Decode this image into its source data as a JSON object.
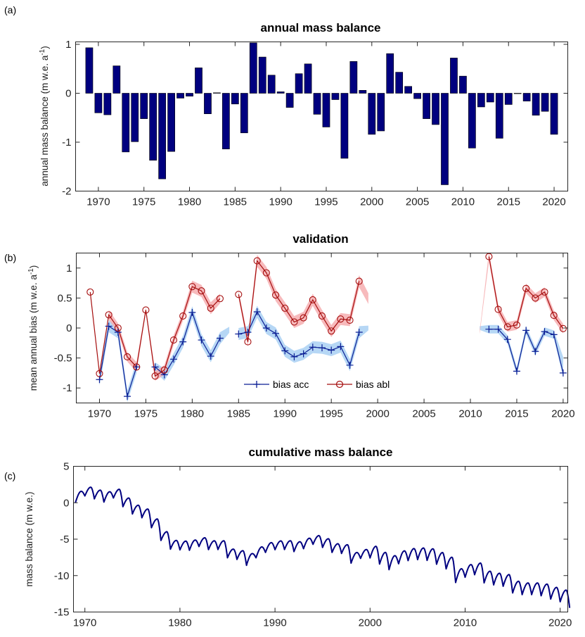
{
  "figure": {
    "colors": {
      "bar": "#00007f",
      "acc": "#0b1e94",
      "abl": "#a50d0d",
      "acc_band": "#aed3f4",
      "abl_band": "#f6aeb0",
      "line": "#000080"
    }
  },
  "chart_data": [
    {
      "panel": "(a)",
      "type": "bar",
      "title": "annual mass balance",
      "ylabel": "annual mass balance  (m w.e. a",
      "ylabel_sup": "-1",
      "ylabel_end": ")",
      "xlim": [
        1967.5,
        2021.5
      ],
      "ylim": [
        -2,
        1.05
      ],
      "xticks": [
        1970,
        1975,
        1980,
        1985,
        1990,
        1995,
        2000,
        2005,
        2010,
        2015,
        2020
      ],
      "yticks": [
        -2,
        -1,
        0,
        1
      ],
      "years": [
        1969,
        1970,
        1971,
        1972,
        1973,
        1974,
        1975,
        1976,
        1977,
        1978,
        1979,
        1980,
        1981,
        1982,
        1983,
        1984,
        1985,
        1986,
        1987,
        1988,
        1989,
        1990,
        1991,
        1992,
        1993,
        1994,
        1995,
        1996,
        1997,
        1998,
        1999,
        2000,
        2001,
        2002,
        2003,
        2004,
        2005,
        2006,
        2007,
        2008,
        2009,
        2010,
        2011,
        2012,
        2013,
        2014,
        2015,
        2016,
        2017,
        2018,
        2019,
        2020
      ],
      "values": [
        0.93,
        -0.4,
        -0.44,
        0.56,
        -1.2,
        -0.99,
        -0.52,
        -1.37,
        -1.75,
        -1.19,
        -0.1,
        -0.06,
        0.52,
        -0.42,
        0.01,
        -1.14,
        -0.22,
        -0.81,
        1.03,
        0.74,
        0.37,
        0.03,
        -0.29,
        0.4,
        0.6,
        -0.43,
        -0.69,
        -0.13,
        -1.33,
        0.65,
        0.06,
        -0.84,
        -0.77,
        0.81,
        0.43,
        0.14,
        -0.11,
        -0.52,
        -0.64,
        -1.87,
        0.72,
        0.35,
        -1.12,
        -0.28,
        -0.18,
        -0.92,
        -0.23,
        0.0,
        -0.16,
        -0.45,
        -0.37,
        -0.84
      ]
    },
    {
      "panel": "(b)",
      "type": "line",
      "title": "validation",
      "ylabel": "mean annual bias (m w.e. a",
      "ylabel_sup": "-1",
      "ylabel_end": ")",
      "xlim": [
        1967.5,
        2020.5
      ],
      "ylim": [
        -1.25,
        1.25
      ],
      "xticks": [
        1970,
        1975,
        1980,
        1985,
        1990,
        1995,
        2000,
        2005,
        2010,
        2015,
        2020
      ],
      "yticks": [
        -1,
        -0.5,
        0,
        0.5,
        1
      ],
      "legend_position": "bottom-center",
      "series": [
        {
          "name": "bias acc",
          "marker": "+",
          "segments": [
            {
              "x": [
                1970,
                1971,
                1972,
                1973,
                1974
              ],
              "y": [
                -0.86,
                0.03,
                -0.07,
                -1.14,
                -0.65
              ]
            },
            {
              "x": [
                1976,
                1977,
                1978,
                1979,
                1980,
                1981,
                1982,
                1983
              ],
              "y": [
                -0.65,
                -0.78,
                -0.52,
                -0.23,
                0.26,
                -0.2,
                -0.47,
                -0.17
              ]
            },
            {
              "x": [
                1985,
                1986,
                1987,
                1988,
                1989,
                1990,
                1991,
                1992,
                1993,
                1994,
                1995,
                1996,
                1997,
                1998
              ],
              "y": [
                -0.1,
                -0.07,
                0.27,
                0.0,
                -0.09,
                -0.38,
                -0.48,
                -0.43,
                -0.32,
                -0.33,
                -0.37,
                -0.31,
                -0.62,
                -0.07
              ]
            },
            {
              "x": [
                2012,
                2013,
                2014,
                2015,
                2016,
                2017,
                2018,
                2019,
                2020
              ],
              "y": [
                -0.02,
                -0.02,
                -0.19,
                -0.72,
                -0.04,
                -0.39,
                -0.06,
                -0.11,
                -0.75
              ]
            }
          ],
          "band_segments": [
            {
              "x": [
                1970,
                1971,
                1972,
                1973,
                1974
              ],
              "upper": [
                -0.76,
                0.13,
                0.03,
                -1.04,
                -0.55
              ],
              "lower": [
                -0.96,
                -0.07,
                -0.17,
                -1.24,
                -0.75
              ]
            },
            {
              "x": [
                1976,
                1977,
                1978,
                1979,
                1980,
                1981,
                1982,
                1983,
                1984
              ],
              "upper": [
                -0.57,
                -0.68,
                -0.42,
                -0.13,
                0.36,
                -0.1,
                -0.37,
                -0.07,
                0.02
              ],
              "lower": [
                -0.73,
                -0.88,
                -0.62,
                -0.33,
                0.16,
                -0.3,
                -0.57,
                -0.27,
                -0.08
              ]
            },
            {
              "x": [
                1985,
                1986,
                1987,
                1988,
                1989,
                1990,
                1991,
                1992,
                1993,
                1994,
                1995,
                1996,
                1997,
                1998,
                1999
              ],
              "upper": [
                0.0,
                0.03,
                0.37,
                0.1,
                0.01,
                -0.28,
                -0.38,
                -0.33,
                -0.22,
                -0.23,
                -0.27,
                -0.21,
                -0.52,
                0.03,
                0.04
              ],
              "lower": [
                -0.2,
                -0.17,
                0.17,
                -0.1,
                -0.19,
                -0.48,
                -0.58,
                -0.53,
                -0.42,
                -0.43,
                -0.47,
                -0.41,
                -0.72,
                -0.17,
                -0.04
              ]
            },
            {
              "x": [
                2011,
                2012,
                2013,
                2014,
                2015,
                2016,
                2017,
                2018,
                2019,
                2020
              ],
              "upper": [
                0.03,
                0.05,
                0.05,
                -0.12,
                -0.65,
                0.03,
                -0.32,
                0.01,
                -0.04,
                -0.48
              ],
              "lower": [
                -0.03,
                -0.09,
                -0.09,
                -0.26,
                -0.79,
                -0.11,
                -0.46,
                -0.13,
                -0.18,
                -0.82
              ]
            }
          ]
        },
        {
          "name": "bias abl",
          "marker": "o",
          "segments": [
            {
              "x": [
                1969,
                1970,
                1971,
                1972,
                1973,
                1974,
                1975,
                1976,
                1977,
                1978,
                1979,
                1980,
                1981,
                1982,
                1983
              ],
              "y": [
                0.6,
                -0.76,
                0.22,
                0.0,
                -0.48,
                -0.65,
                0.3,
                -0.8,
                -0.7,
                -0.2,
                0.2,
                0.69,
                0.62,
                0.33,
                0.49
              ]
            },
            {
              "x": [
                1985,
                1986,
                1987,
                1988,
                1989,
                1990,
                1991,
                1992,
                1993,
                1994,
                1995,
                1996,
                1997,
                1998
              ],
              "y": [
                0.56,
                -0.23,
                1.12,
                0.92,
                0.55,
                0.33,
                0.1,
                0.17,
                0.47,
                0.2,
                -0.05,
                0.15,
                0.13,
                0.78
              ]
            },
            {
              "x": [
                2012,
                2013,
                2014,
                2015,
                2016,
                2017,
                2018,
                2019,
                2020
              ],
              "y": [
                1.19,
                0.31,
                0.02,
                0.05,
                0.66,
                0.5,
                0.6,
                0.21,
                -0.01
              ]
            }
          ],
          "band_segments": [
            {
              "x": [
                1971,
                1972,
                1973,
                1974,
                1975,
                1976,
                1977,
                1978,
                1979,
                1980,
                1981,
                1982,
                1983
              ],
              "upper": [
                0.3,
                0.08,
                -0.4,
                -0.57,
                0.34,
                -0.72,
                -0.62,
                -0.12,
                0.28,
                0.79,
                0.72,
                0.43,
                0.57
              ],
              "lower": [
                0.14,
                -0.08,
                -0.56,
                -0.73,
                0.26,
                -0.88,
                -0.78,
                -0.28,
                0.12,
                0.59,
                0.52,
                0.23,
                0.41
              ]
            },
            {
              "x": [
                1985,
                1986,
                1987,
                1988,
                1989,
                1990,
                1991,
                1992,
                1993,
                1994,
                1995,
                1996,
                1997,
                1998,
                1999
              ],
              "upper": [
                0.62,
                -0.15,
                1.22,
                1.02,
                0.65,
                0.43,
                0.2,
                0.27,
                0.57,
                0.3,
                0.05,
                0.25,
                0.23,
                0.88,
                0.58
              ],
              "lower": [
                0.5,
                -0.31,
                1.02,
                0.82,
                0.45,
                0.23,
                0.0,
                0.07,
                0.37,
                0.1,
                -0.15,
                0.05,
                0.03,
                0.68,
                0.4
              ]
            },
            {
              "x": [
                2011,
                2012,
                2013,
                2014,
                2015,
                2016,
                2017,
                2018,
                2019,
                2020
              ],
              "upper": [
                -0.05,
                1.27,
                0.39,
                0.1,
                0.13,
                0.74,
                0.58,
                0.68,
                0.29,
                0.07
              ],
              "lower": [
                -0.1,
                1.11,
                0.23,
                -0.06,
                -0.03,
                0.58,
                0.42,
                0.52,
                0.13,
                -0.09
              ]
            }
          ]
        }
      ]
    },
    {
      "panel": "(c)",
      "type": "line",
      "title": "cumulative mass balance",
      "ylabel": "mass balance (m w.e.)",
      "xlim": [
        1968.8,
        2020.8
      ],
      "ylim": [
        -15,
        5
      ],
      "xticks": [
        1970,
        1980,
        1990,
        2000,
        2010,
        2020
      ],
      "yticks": [
        -15,
        -10,
        -5,
        0,
        5
      ],
      "seasonal_series": {
        "start_year": 1969,
        "start_value": 0.0,
        "annual_balance_source": "panel (a) values",
        "summer_melt_amplitude": 1.2,
        "summer_melt_amplitude_late": 1.6
      }
    }
  ]
}
